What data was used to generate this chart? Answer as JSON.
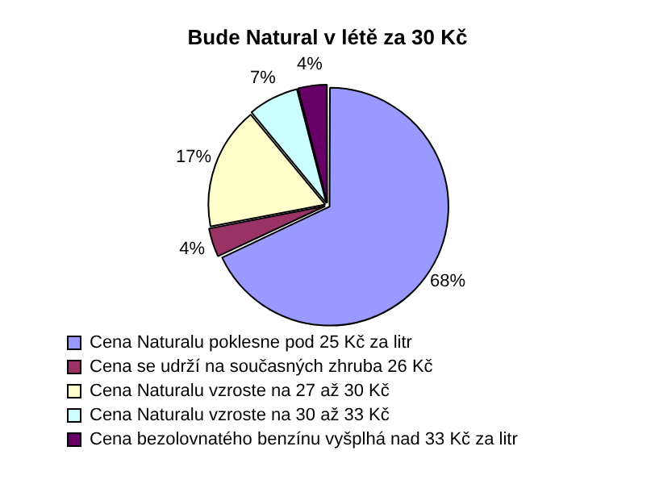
{
  "chart_data": {
    "type": "pie",
    "title": "Bude Natural v létě za 30 Kč",
    "categories": [
      "Cena Naturalu poklesne pod 25 Kč za litr",
      "Cena se udrží na současných zhruba 26 Kč",
      "Cena Naturalu vzroste na 27 až 30 Kč",
      "Cena Naturalu vzroste na 30 až 33 Kč",
      "Cena bezolovnatého benzínu vyšplhá nad 33 Kč za litr"
    ],
    "values": [
      68,
      4,
      17,
      7,
      4
    ],
    "value_labels": [
      "68%",
      "4%",
      "17%",
      "7%",
      "4%"
    ],
    "colors": [
      "#9999ff",
      "#993366",
      "#ffffcc",
      "#ccffff",
      "#660066"
    ],
    "legend": "bottom"
  }
}
